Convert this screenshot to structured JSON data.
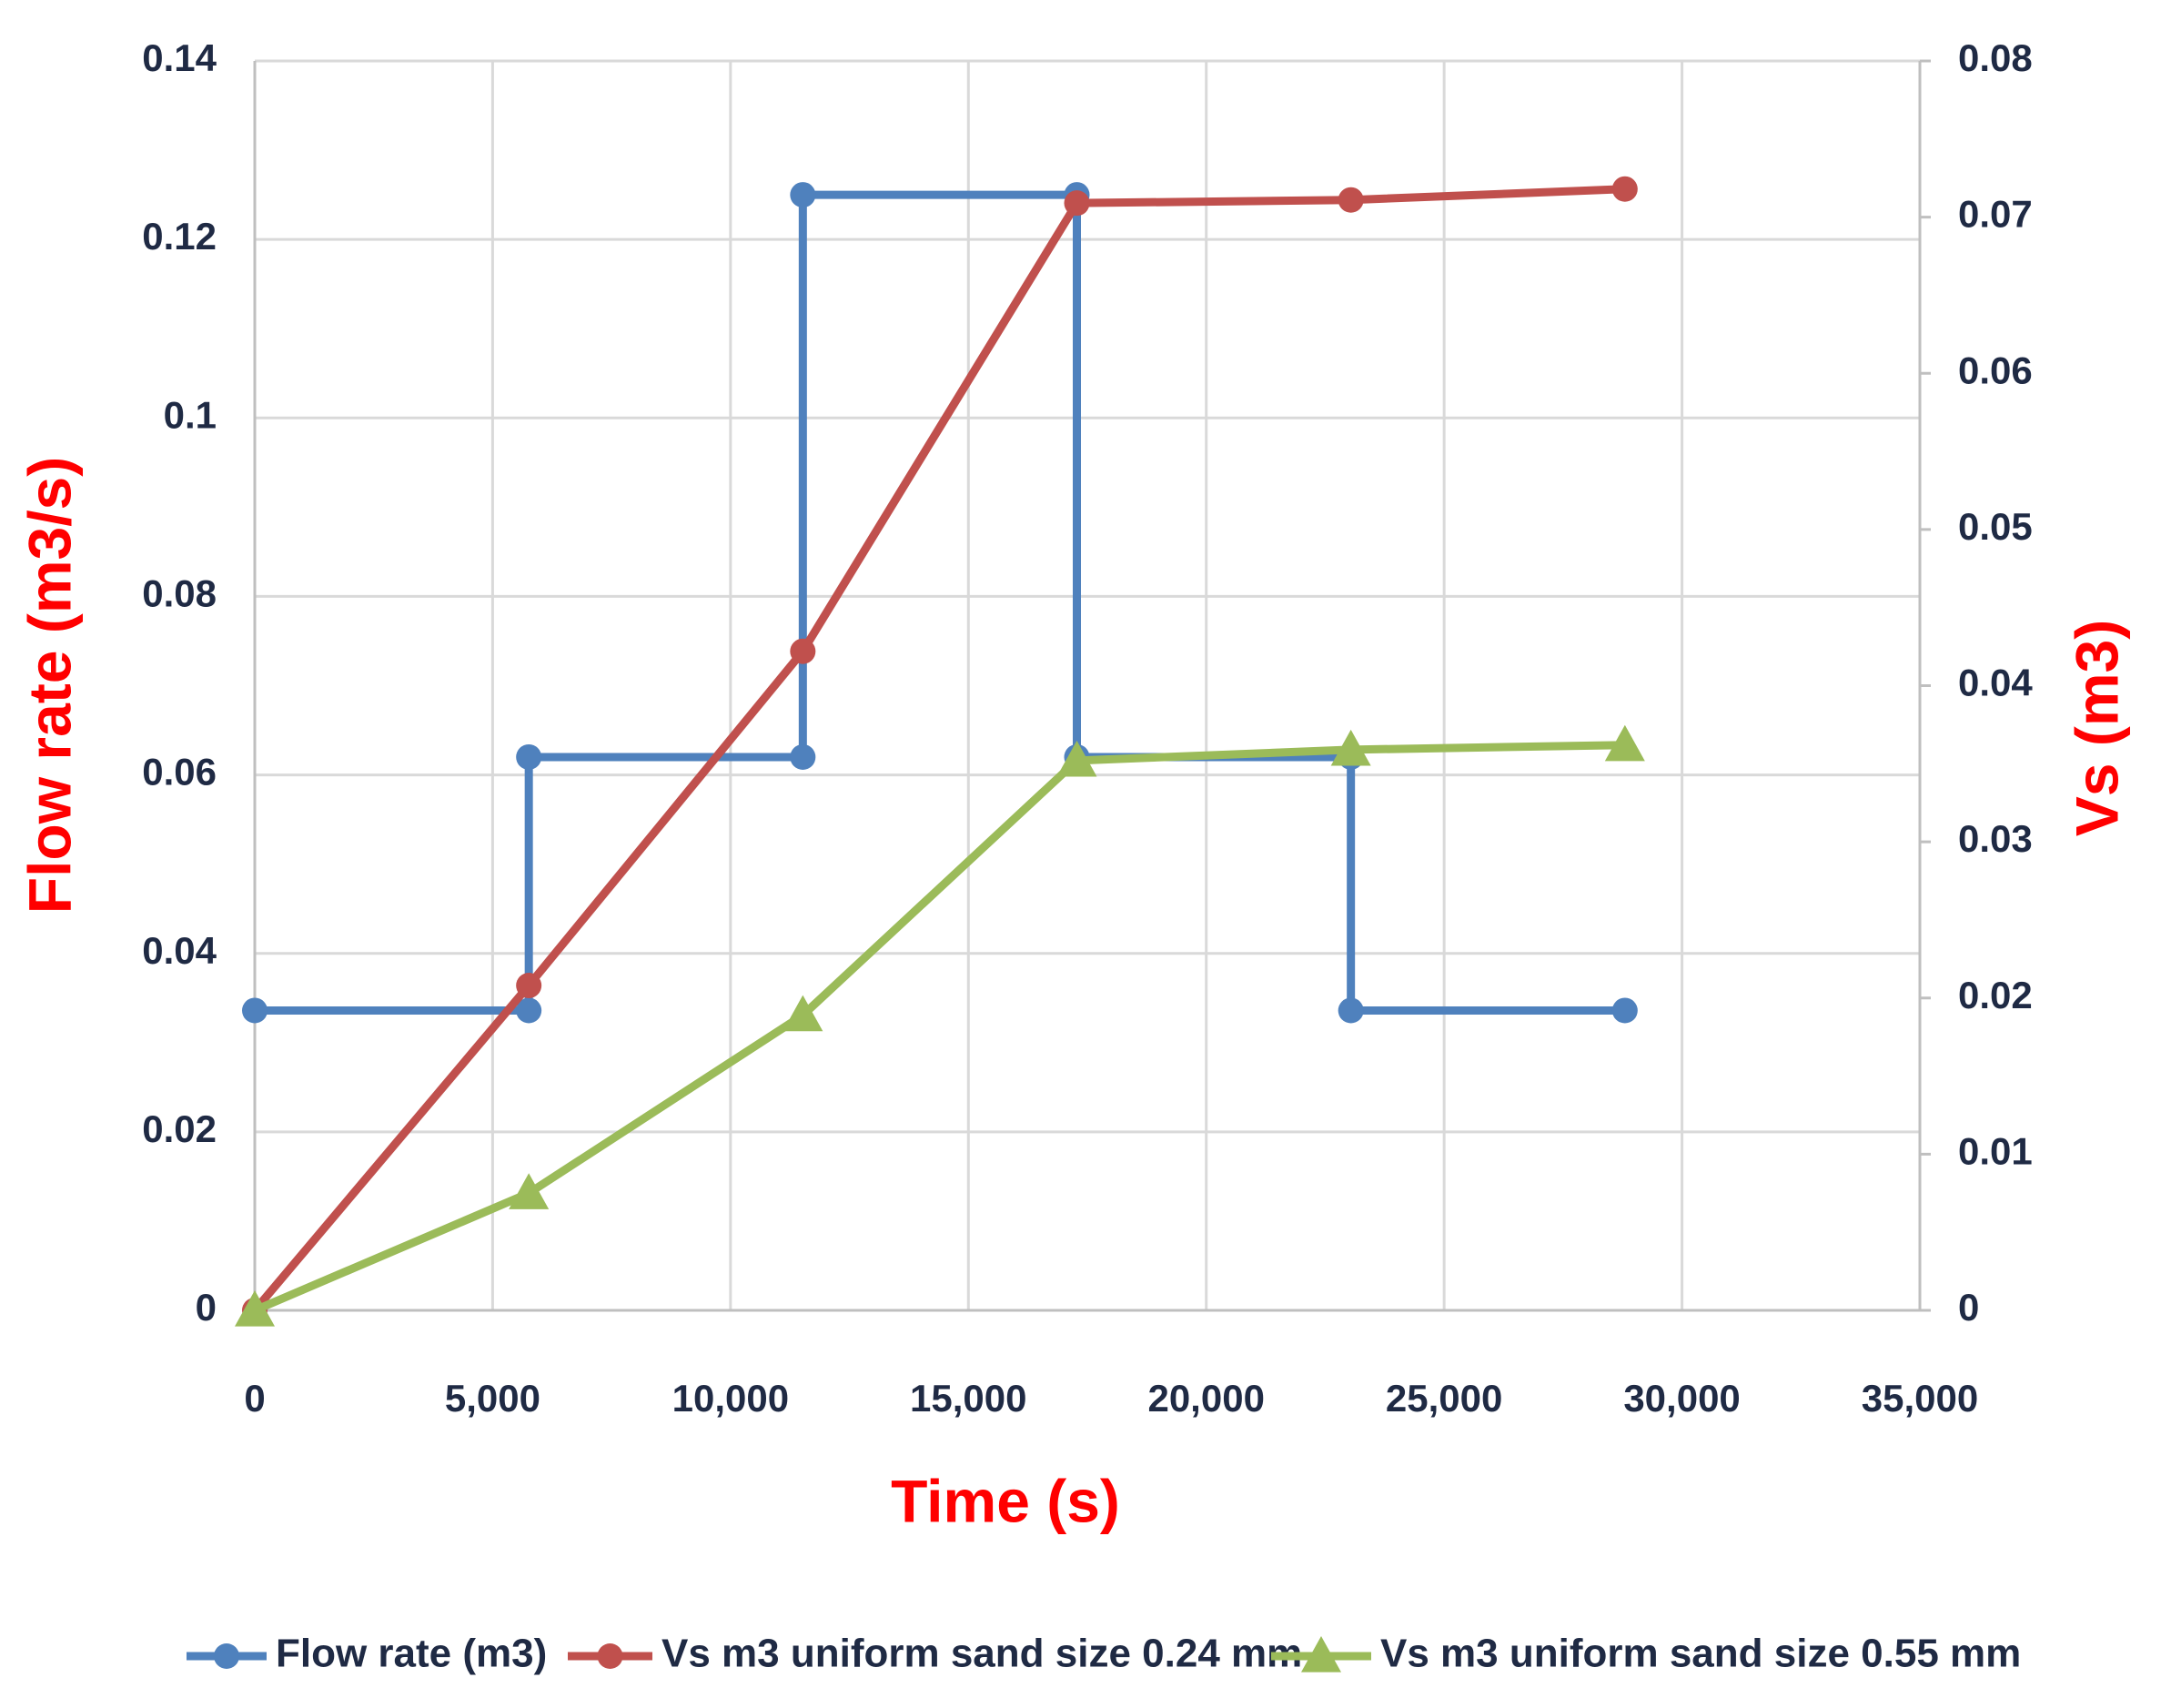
{
  "chart_data": {
    "type": "line",
    "xlabel": "Time (s)",
    "ylabel": "Flow rate (m3/s)",
    "y2label": "Vs (m3)",
    "xlim": [
      0,
      35000
    ],
    "xticks": [
      0,
      {
        "value": 5000,
        "label": "5,000"
      },
      {
        "value": 10000,
        "label": "10,000"
      },
      {
        "value": 15000,
        "label": "15,000"
      },
      {
        "value": 20000,
        "label": "20,000"
      },
      {
        "value": 25000,
        "label": "25,000"
      },
      {
        "value": 30000,
        "label": "30,000"
      },
      {
        "value": 35000,
        "label": "35,000"
      }
    ],
    "ylim": [
      0,
      0.14
    ],
    "yticks": [
      0,
      0.02,
      0.04,
      0.06,
      0.08,
      0.1,
      0.12,
      0.14
    ],
    "y2lim": [
      0,
      0.08
    ],
    "y2ticks": [
      0,
      0.01,
      0.02,
      0.03,
      0.04,
      0.05,
      0.06,
      0.07,
      0.08
    ],
    "grid": true,
    "legend": "bottom",
    "series": [
      {
        "name": "Flow rate (m3)",
        "color": "#4f81bd",
        "marker": "circle",
        "x": [
          0,
          5760,
          5760,
          11520,
          11520,
          17280,
          17280,
          23040,
          23040,
          28800
        ],
        "values": [
          0.0336,
          0.0336,
          0.062,
          0.062,
          0.125,
          0.125,
          0.062,
          0.062,
          0.0336,
          0.0336
        ]
      },
      {
        "name": "Vs m3 uniform sand size 0.24 mm",
        "color": "#c0504d",
        "marker": "circle",
        "axis": "y2",
        "x": [
          0,
          5760,
          11520,
          17280,
          23040,
          28800
        ],
        "values": [
          0,
          0.0208,
          0.0422,
          0.0709,
          0.0711,
          0.0718
        ]
      },
      {
        "name": "Vs m3 uniform sand size 0.55 mm",
        "color": "#9bbb59",
        "marker": "triangle",
        "axis": "y2",
        "x": [
          0,
          5760,
          11520,
          17280,
          23040,
          28800
        ],
        "values": [
          0,
          0.0075,
          0.0189,
          0.0352,
          0.0359,
          0.0362
        ]
      }
    ]
  }
}
